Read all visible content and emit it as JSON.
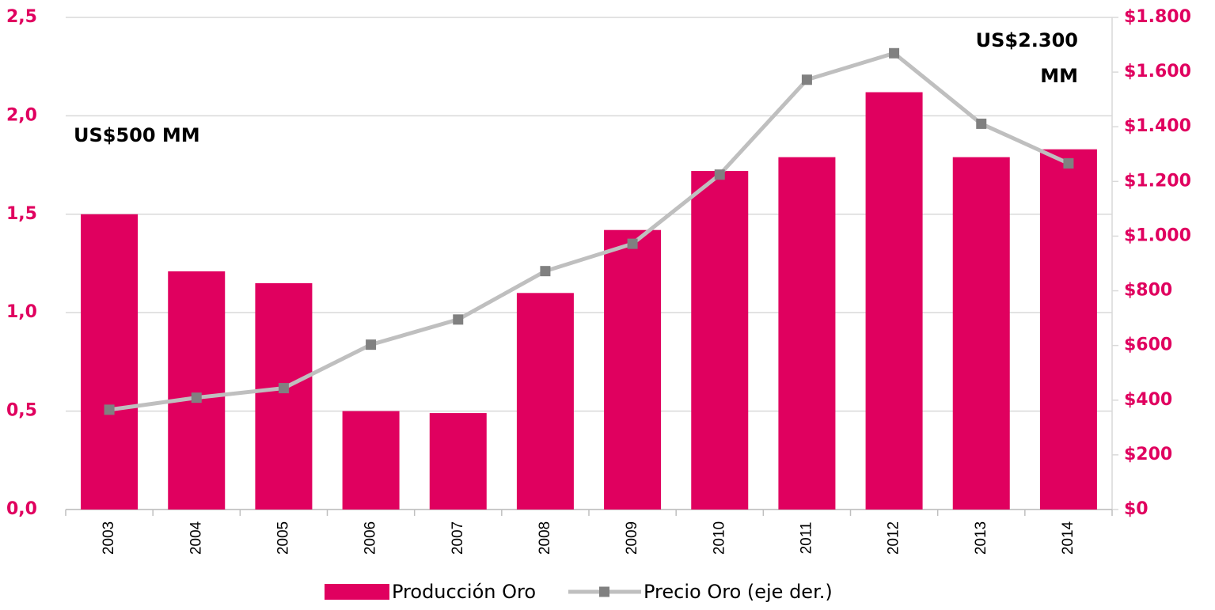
{
  "chart_data": {
    "type": "bar",
    "categories": [
      "2003",
      "2004",
      "2005",
      "2006",
      "2007",
      "2008",
      "2009",
      "2010",
      "2011",
      "2012",
      "2013",
      "2014"
    ],
    "series": [
      {
        "name": "Producción Oro",
        "color": "#e0005f",
        "values": [
          1.5,
          1.21,
          1.15,
          0.5,
          0.49,
          1.1,
          1.42,
          1.72,
          1.79,
          2.12,
          1.79,
          1.83
        ]
      },
      {
        "name": "Precio Oro (eje der.)",
        "type": "line",
        "axis": "y2",
        "color": "#bfbfbf",
        "marker_color": "#808080",
        "values": [
          365,
          409,
          444,
          603,
          695,
          872,
          972,
          1225,
          1572,
          1669,
          1411,
          1266
        ]
      }
    ],
    "ylim": [
      0,
      2.5
    ],
    "yticks": [
      {
        "value": 0,
        "label": "0,0"
      },
      {
        "value": 0.5,
        "label": "0,5"
      },
      {
        "value": 1,
        "label": "1,0"
      },
      {
        "value": 1.5,
        "label": "1,5"
      },
      {
        "value": 2,
        "label": "2,0"
      },
      {
        "value": 2.5,
        "label": "2,5"
      }
    ],
    "y2lim": [
      0,
      1800
    ],
    "y2ticks": [
      {
        "value": 0,
        "label": "$0"
      },
      {
        "value": 200,
        "label": "$200"
      },
      {
        "value": 400,
        "label": "$400"
      },
      {
        "value": 600,
        "label": "$600"
      },
      {
        "value": 800,
        "label": "$800"
      },
      {
        "value": 1000,
        "label": "$1.000"
      },
      {
        "value": 1200,
        "label": "$1.200"
      },
      {
        "value": 1400,
        "label": "$1.400"
      },
      {
        "value": 1600,
        "label": "$1.600"
      },
      {
        "value": 1800,
        "label": "$1.800"
      }
    ],
    "grid": true,
    "legend": "bottom",
    "annotations": [
      [
        "US$500 MM"
      ],
      [
        "US$2.300",
        "MM"
      ]
    ]
  }
}
